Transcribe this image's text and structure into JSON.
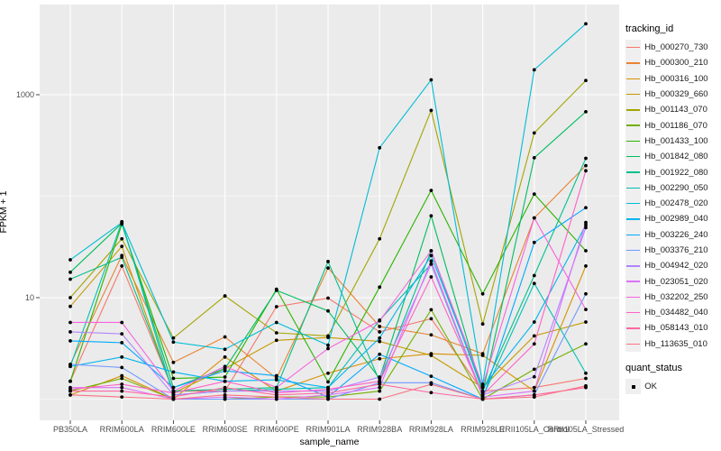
{
  "figure": {
    "x_axis_title": "sample_name",
    "y_axis_title": "FPKM + 1",
    "legend_tracking_title": "tracking_id",
    "legend_quant_title": "quant_status",
    "legend_quant_ok_label": "OK",
    "panel_bg_color": "#EBEBEB",
    "gridline_color": "#FFFFFF",
    "tick_label_color": "#4D4D4D",
    "tick_mark_color": "#333333",
    "point_color": "#000000",
    "legend_key_bg_color": "#EFEFEF"
  },
  "chart_data": {
    "type": "line",
    "title": "",
    "xlabel": "sample_name",
    "ylabel": "FPKM + 1",
    "y_scale": "log10",
    "grid": true,
    "legend_position": "right",
    "ylim": [
      0.62,
      7750
    ],
    "y_major_ticks": [
      {
        "label": "1000",
        "value": 1000
      },
      {
        "label": "10",
        "value": 10
      }
    ],
    "y_minor_gridline_values": [
      100,
      1
    ],
    "point_marker": {
      "shape": "dot",
      "color": "#000000"
    },
    "quant_status": "OK",
    "categories": [
      "PB350LA",
      "RRIM600LA",
      "RRIM600LE",
      "RRIM600SE",
      "RRIM600PE",
      "RRIM901LA",
      "RRIM928BA",
      "RRIM928LA",
      "RRIM928LE",
      "RRII105LA_Control",
      "RRII105LA_Stressed"
    ],
    "series": [
      {
        "name": "Hb_000270_730",
        "color": "#F8766D",
        "values": [
          1.5,
          20.5,
          1.2,
          1.2,
          8.15,
          9.9,
          4.6,
          6.2,
          1.2,
          1.3,
          1.6
        ]
      },
      {
        "name": "Hb_000300_210",
        "color": "#EA8331",
        "values": [
          2.2,
          26,
          2.3,
          4.1,
          1.6,
          19.6,
          5.2,
          4.3,
          2.8,
          61,
          200
        ]
      },
      {
        "name": "Hb_000316_100",
        "color": "#D89000",
        "values": [
          1.1,
          1.7,
          1.0,
          2.6,
          1.2,
          1.8,
          2.5,
          2.8,
          2.7,
          1.2,
          20.5
        ]
      },
      {
        "name": "Hb_000329_660",
        "color": "#C49A00",
        "values": [
          8.2,
          32,
          1.15,
          2.0,
          3.8,
          4.05,
          3.7,
          2.7,
          1.3,
          4.2,
          5.75
        ]
      },
      {
        "name": "Hb_001143_070",
        "color": "#A3A500",
        "values": [
          10,
          38,
          4.0,
          10.4,
          4.5,
          4.2,
          38,
          700,
          5.5,
          420,
          1380
        ]
      },
      {
        "name": "Hb_001186_070",
        "color": "#72B000",
        "values": [
          1.2,
          1.6,
          1.0,
          1.0,
          1.05,
          1.05,
          1.2,
          7.6,
          1.0,
          1.97,
          3.5
        ]
      },
      {
        "name": "Hb_001433_100",
        "color": "#2CB400",
        "values": [
          1.5,
          53,
          1.6,
          1.65,
          12.1,
          1.48,
          12.7,
          114,
          10.9,
          105,
          29
        ]
      },
      {
        "name": "Hb_001842_080",
        "color": "#00BD5F",
        "values": [
          17.8,
          54,
          1.3,
          2.0,
          11.8,
          7.4,
          1.6,
          64,
          1.15,
          239,
          680
        ]
      },
      {
        "name": "Hb_001922_080",
        "color": "#00C08B",
        "values": [
          15.2,
          25,
          1.2,
          1.25,
          1.3,
          22.7,
          1.5,
          29,
          1.2,
          16.5,
          236
        ]
      },
      {
        "name": "Hb_002290_050",
        "color": "#00C0B4",
        "values": [
          2.1,
          56,
          1.1,
          1.2,
          1.25,
          1.3,
          6.0,
          21.4,
          1.05,
          13.8,
          1.8
        ]
      },
      {
        "name": "Hb_002478_020",
        "color": "#00BDD4",
        "values": [
          23.6,
          55,
          3.65,
          3.1,
          5.7,
          3.4,
          300,
          1400,
          1.4,
          1760,
          5000
        ]
      },
      {
        "name": "Hb_002989_040",
        "color": "#00B5F0",
        "values": [
          2.1,
          2.6,
          1.85,
          1.5,
          1.55,
          1.3,
          4.0,
          26,
          1.3,
          5.75,
          52
        ]
      },
      {
        "name": "Hb_003226_240",
        "color": "#00A9FF",
        "values": [
          3.75,
          3.6,
          1.3,
          1.9,
          1.7,
          1.05,
          2.77,
          1.68,
          1.0,
          35,
          77
        ]
      },
      {
        "name": "Hb_003376_210",
        "color": "#6F98FF",
        "values": [
          2.2,
          2.05,
          1.0,
          1.0,
          1.0,
          1.0,
          1.45,
          1.45,
          1.0,
          1.1,
          10.9
        ]
      },
      {
        "name": "Hb_004942_020",
        "color": "#B383FF",
        "values": [
          4.6,
          4.4,
          1.1,
          1.2,
          1.2,
          1.2,
          1.65,
          21.5,
          1.1,
          1.66,
          49
        ]
      },
      {
        "name": "Hb_023051_020",
        "color": "#DC71FA",
        "values": [
          1.3,
          1.3,
          1.0,
          1.05,
          1.0,
          1.1,
          1.3,
          23,
          1.05,
          1.2,
          55
        ]
      },
      {
        "name": "Hb_032202_250",
        "color": "#F763E0",
        "values": [
          5.7,
          5.7,
          1.2,
          2.1,
          1.3,
          3.15,
          5.9,
          29,
          1.35,
          61,
          7.65
        ]
      },
      {
        "name": "Hb_034482_040",
        "color": "#FF61C7",
        "values": [
          1.25,
          1.4,
          1.15,
          1.5,
          1.15,
          1.25,
          1.5,
          16,
          1.1,
          3.5,
          178
        ]
      },
      {
        "name": "Hb_058143_010",
        "color": "#FF67A2",
        "values": [
          1.2,
          1.2,
          1.05,
          1.3,
          1.1,
          1.15,
          1.4,
          1.16,
          1.0,
          1.1,
          1.3
        ]
      },
      {
        "name": "Hb_113635_010",
        "color": "#FB7281",
        "values": [
          1.1,
          1.05,
          1.0,
          1.1,
          1.05,
          1.0,
          1.0,
          1.4,
          1.0,
          1.05,
          1.35
        ]
      }
    ]
  }
}
